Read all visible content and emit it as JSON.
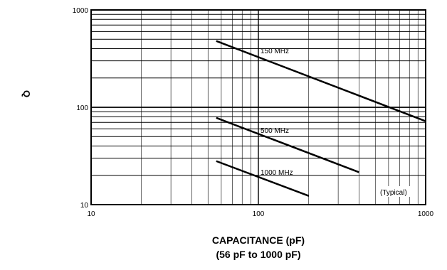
{
  "chart_data": {
    "type": "line",
    "x_scale": "log",
    "y_scale": "log",
    "xlim": [
      10,
      1000
    ],
    "ylim": [
      10,
      1000
    ],
    "x_ticks": [
      "10",
      "100",
      "1000"
    ],
    "y_ticks": [
      "1000",
      "100",
      "10"
    ],
    "ylabel": "Q",
    "xlabel_line1": "CAPACITANCE (pF)",
    "xlabel_line2": "(56 pF to 1000 pF)",
    "note": "(Typical)",
    "grid": true,
    "series": [
      {
        "name": "150 MHz",
        "x": [
          56,
          1000
        ],
        "y": [
          480,
          72
        ]
      },
      {
        "name": "500 MHz",
        "x": [
          56,
          400
        ],
        "y": [
          78,
          21.5
        ]
      },
      {
        "name": "1000 MHz",
        "x": [
          56,
          200
        ],
        "y": [
          28,
          12.3
        ]
      }
    ]
  }
}
